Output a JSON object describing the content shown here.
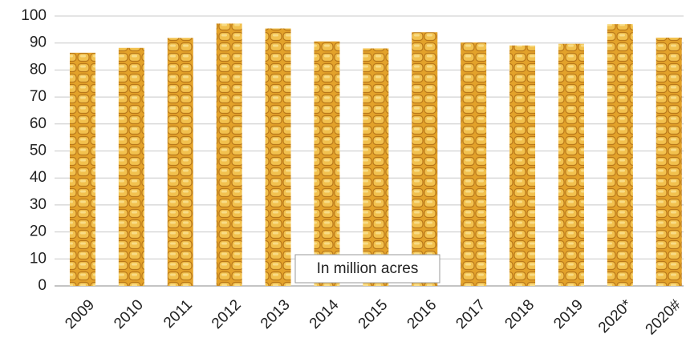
{
  "chart_data": {
    "type": "bar",
    "annotation": "In million acres",
    "categories": [
      "2009",
      "2010",
      "2011",
      "2012",
      "2013",
      "2014",
      "2015",
      "2016",
      "2017",
      "2018",
      "2019",
      "2020*",
      "2020#"
    ],
    "values": [
      86.4,
      88.2,
      91.9,
      97.2,
      95.4,
      90.6,
      88.0,
      94.0,
      90.2,
      89.1,
      89.7,
      97.0,
      92.0
    ],
    "color": "#e3a22a",
    "ylim": [
      0,
      100
    ],
    "yticks": [
      0,
      10,
      20,
      30,
      40,
      50,
      60,
      70,
      80,
      90,
      100
    ],
    "grid": true
  }
}
